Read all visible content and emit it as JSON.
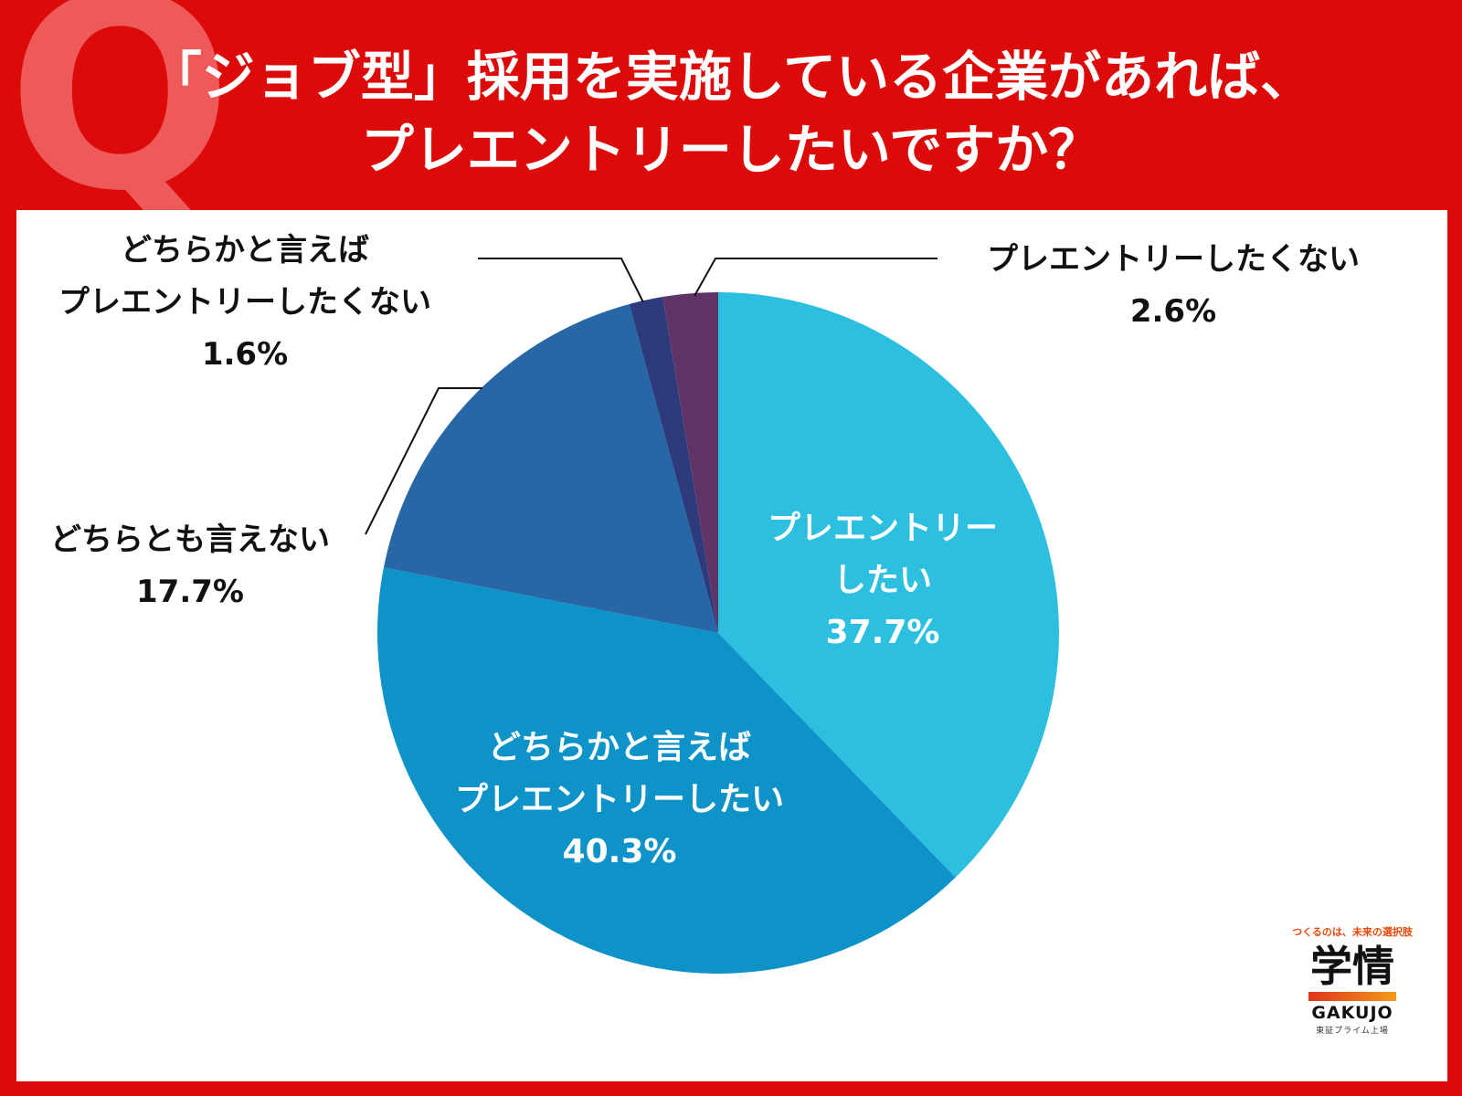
{
  "header": {
    "q_mark": "Q",
    "title_lines": [
      "「ジョブ型」採用を実施している企業があれば、",
      "プレエントリーしたいですか？"
    ]
  },
  "chart_data": {
    "type": "pie",
    "title": "「ジョブ型」採用を実施している企業があれば、プレエントリーしたいですか？",
    "start": "12 o'clock, clockwise",
    "slices": [
      {
        "label_lines": [
          "プレエントリー",
          "したい"
        ],
        "value_text": "37.7%",
        "value": 37.7,
        "color": "#2cbfe0",
        "label_color": "#ffffff"
      },
      {
        "label_lines": [
          "どちらかと言えば",
          "プレエントリーしたい"
        ],
        "value_text": "40.3%",
        "value": 40.3,
        "color": "#0e93c9",
        "label_color": "#ffffff"
      },
      {
        "label_lines": [
          "どちらとも言えない"
        ],
        "value_text": "17.7%",
        "value": 17.7,
        "color": "#2767a6",
        "label_color": "#111111"
      },
      {
        "label_lines": [
          "どちらかと言えば",
          "プレエントリーしたくない"
        ],
        "value_text": "1.6%",
        "value": 1.6,
        "color": "#2d3b7d",
        "label_color": "#111111"
      },
      {
        "label_lines": [
          "プレエントリーしたくない"
        ],
        "value_text": "2.6%",
        "value": 2.6,
        "color": "#5f3567",
        "label_color": "#111111"
      }
    ]
  },
  "logo": {
    "tagline": "つくるのは、未来の選択肢",
    "kanji": "学情",
    "name": "GAKUJO",
    "sub": "東証プライム上場"
  }
}
